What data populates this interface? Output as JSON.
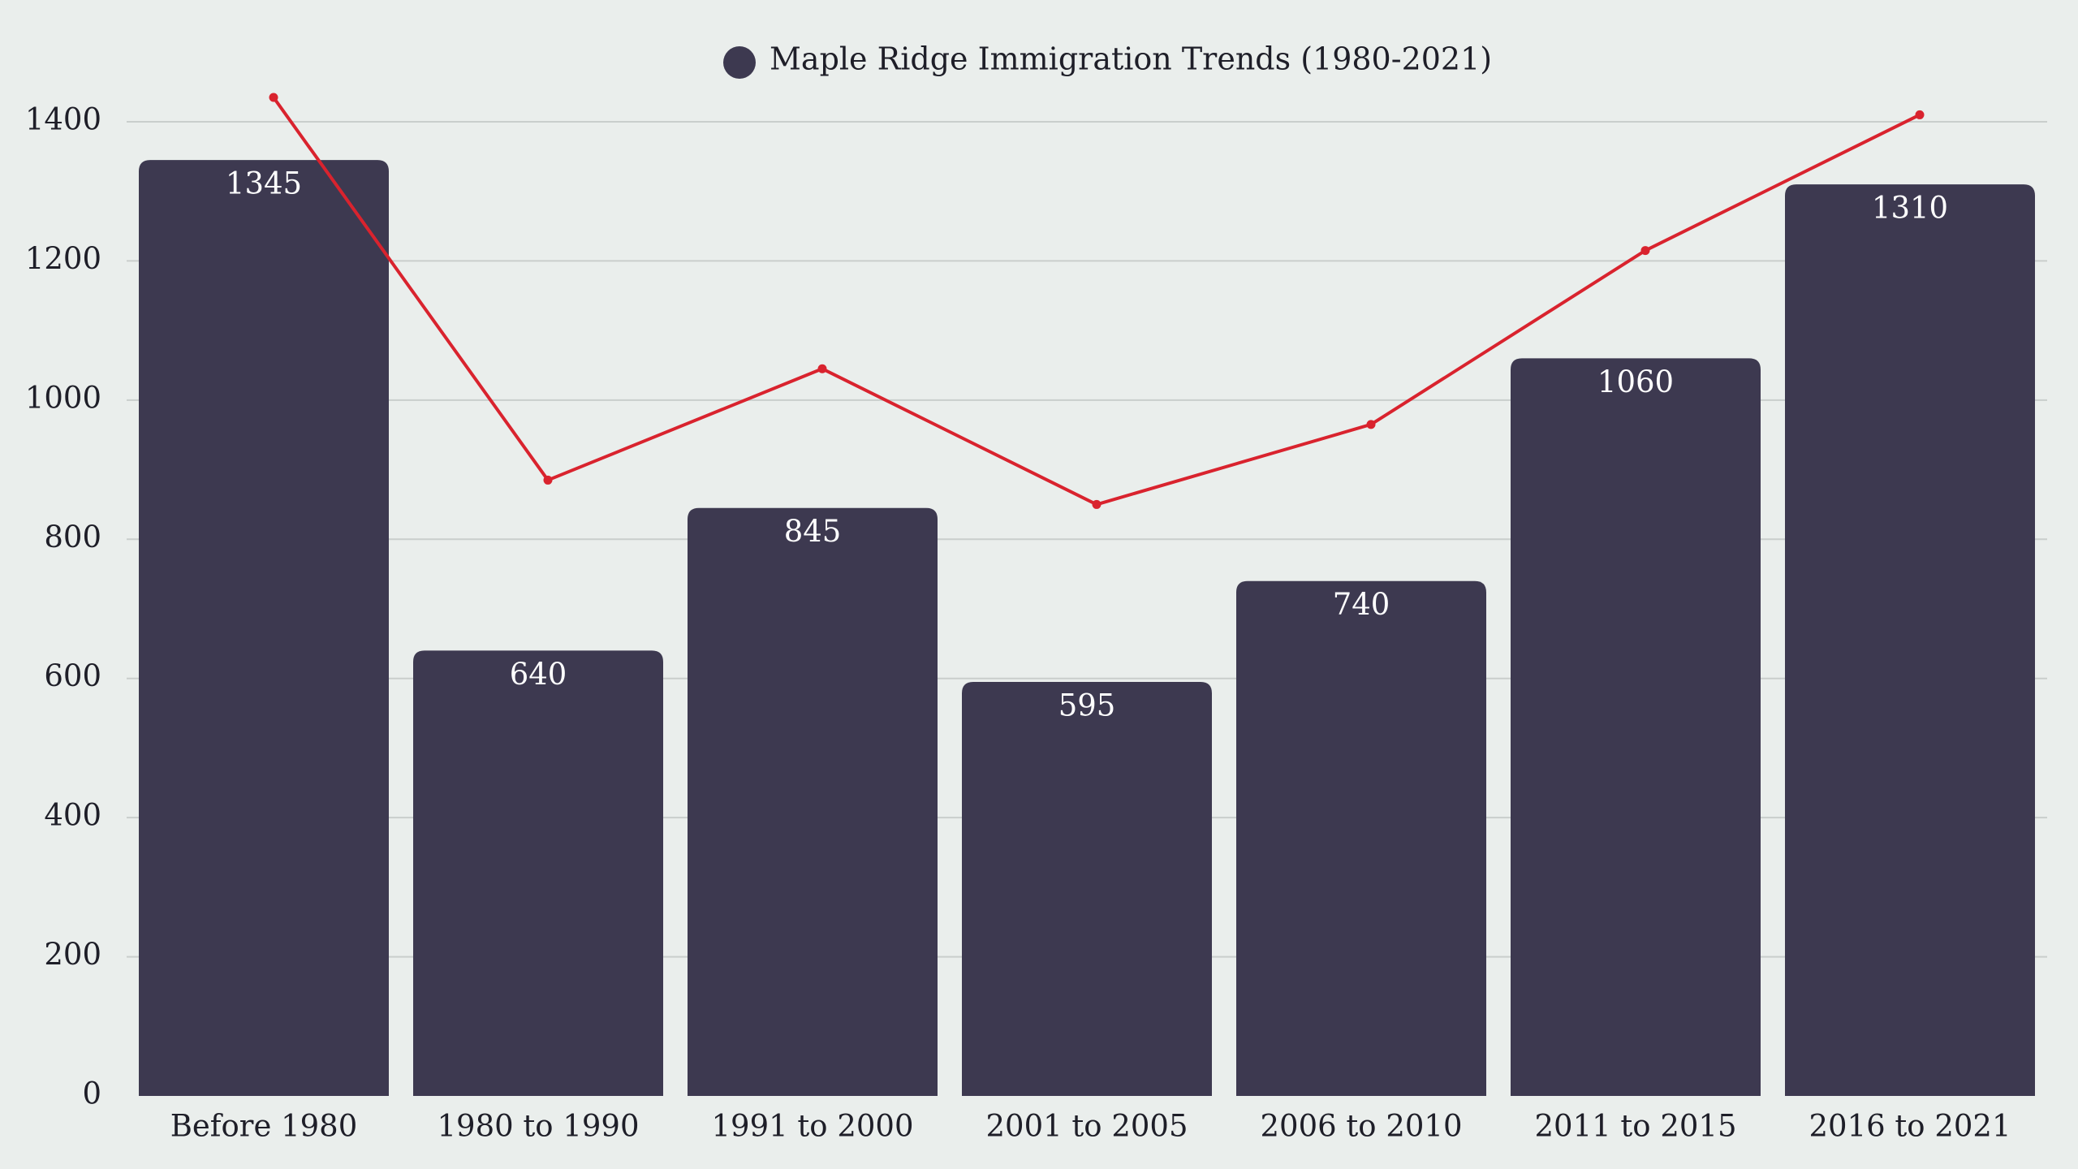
{
  "chart_data": {
    "type": "bar",
    "title": "",
    "xlabel": "",
    "ylabel": "",
    "ylim": [
      0,
      1400
    ],
    "yticks": [
      0,
      200,
      400,
      600,
      800,
      1000,
      1200,
      1400
    ],
    "grid": true,
    "legend_position": "top-center",
    "categories": [
      "Before 1980",
      "1980 to 1990",
      "1991 to 2000",
      "2001 to 2005",
      "2006 to 2010",
      "2011 to 2015",
      "2016 to 2021"
    ],
    "series": [
      {
        "name": "Maple Ridge Immigration Trends (1980-2021)",
        "type": "bar",
        "values": [
          1345,
          640,
          845,
          595,
          740,
          1060,
          1310
        ],
        "color": "#3d3950"
      },
      {
        "type": "line",
        "values": [
          1435,
          885,
          1045,
          850,
          965,
          1215,
          1410
        ],
        "color": "#d9232e"
      }
    ]
  }
}
